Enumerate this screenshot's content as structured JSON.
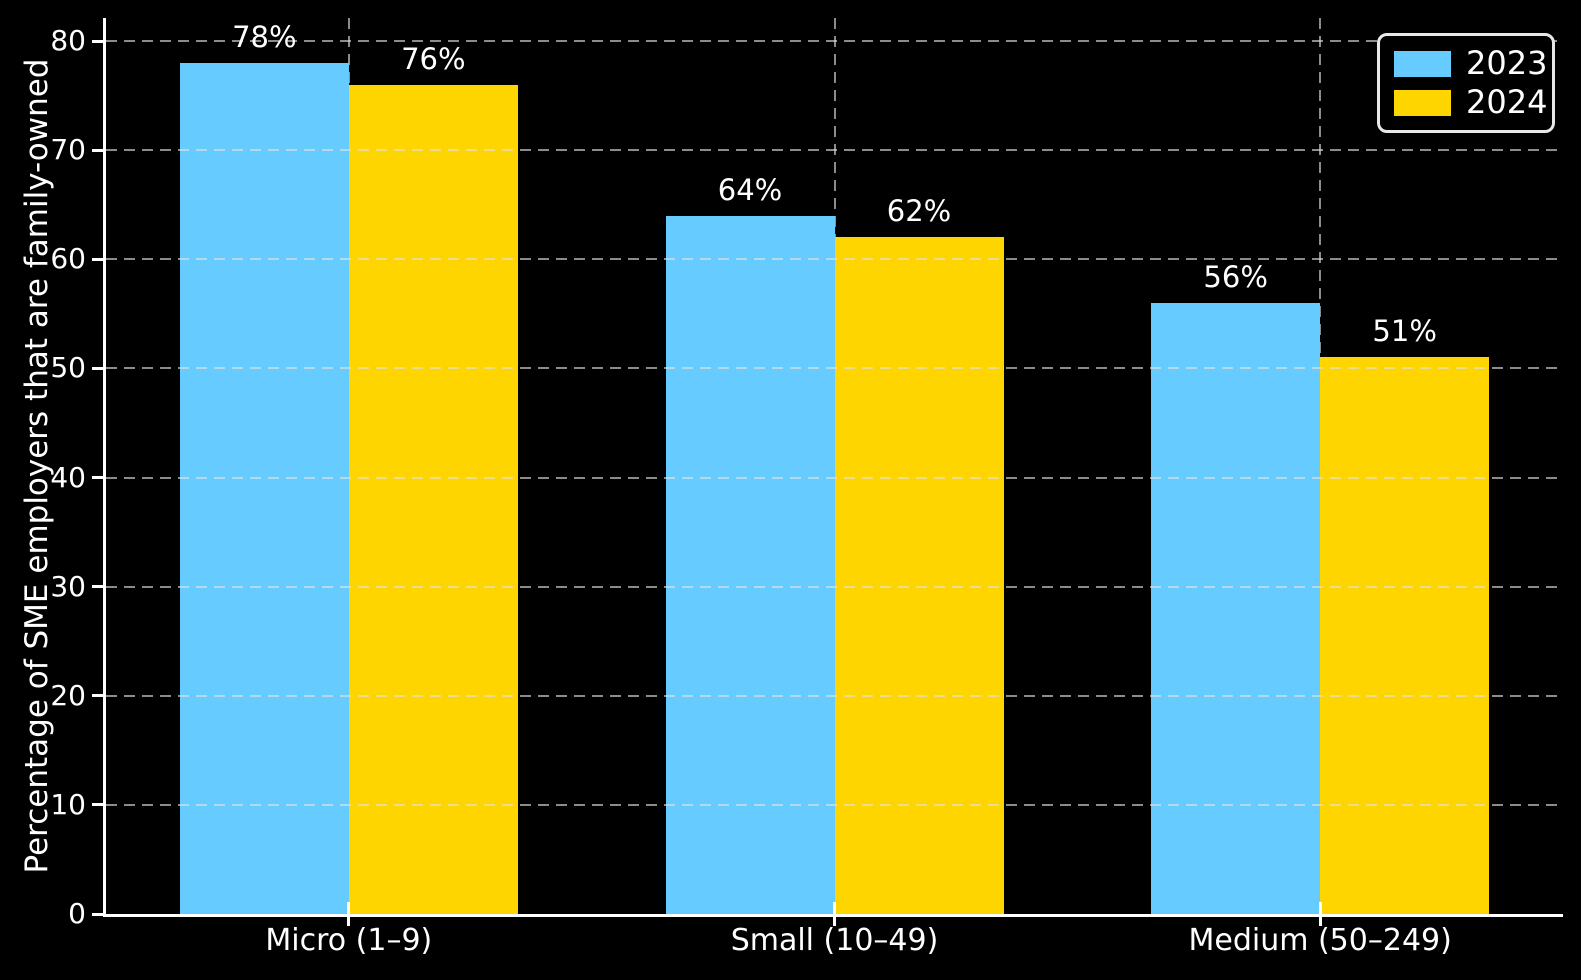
{
  "chart_data": {
    "type": "bar",
    "title": "",
    "xlabel": "",
    "ylabel": "Percentage of SME employers that are family-owned",
    "categories": [
      "Micro (1–9)",
      "Small (10–49)",
      "Medium (50–249)"
    ],
    "series": [
      {
        "name": "2023",
        "color": "#66CCFF",
        "values": [
          78,
          64,
          56
        ],
        "labels": [
          "78%",
          "64%",
          "56%"
        ]
      },
      {
        "name": "2024",
        "color": "#FFD500",
        "values": [
          76,
          62,
          51
        ],
        "labels": [
          "76%",
          "62%",
          "51%"
        ]
      }
    ],
    "yticks": [
      0,
      10,
      20,
      30,
      40,
      50,
      60,
      70,
      80
    ],
    "ylim": [
      0,
      80
    ],
    "grid": true,
    "grid_style": "dashed",
    "legend_position": "upper right",
    "background_color": "#000000",
    "text_color": "#FFFFFF",
    "grid_color": "#AAAAAA",
    "spine_color": "#FFFFFF"
  }
}
